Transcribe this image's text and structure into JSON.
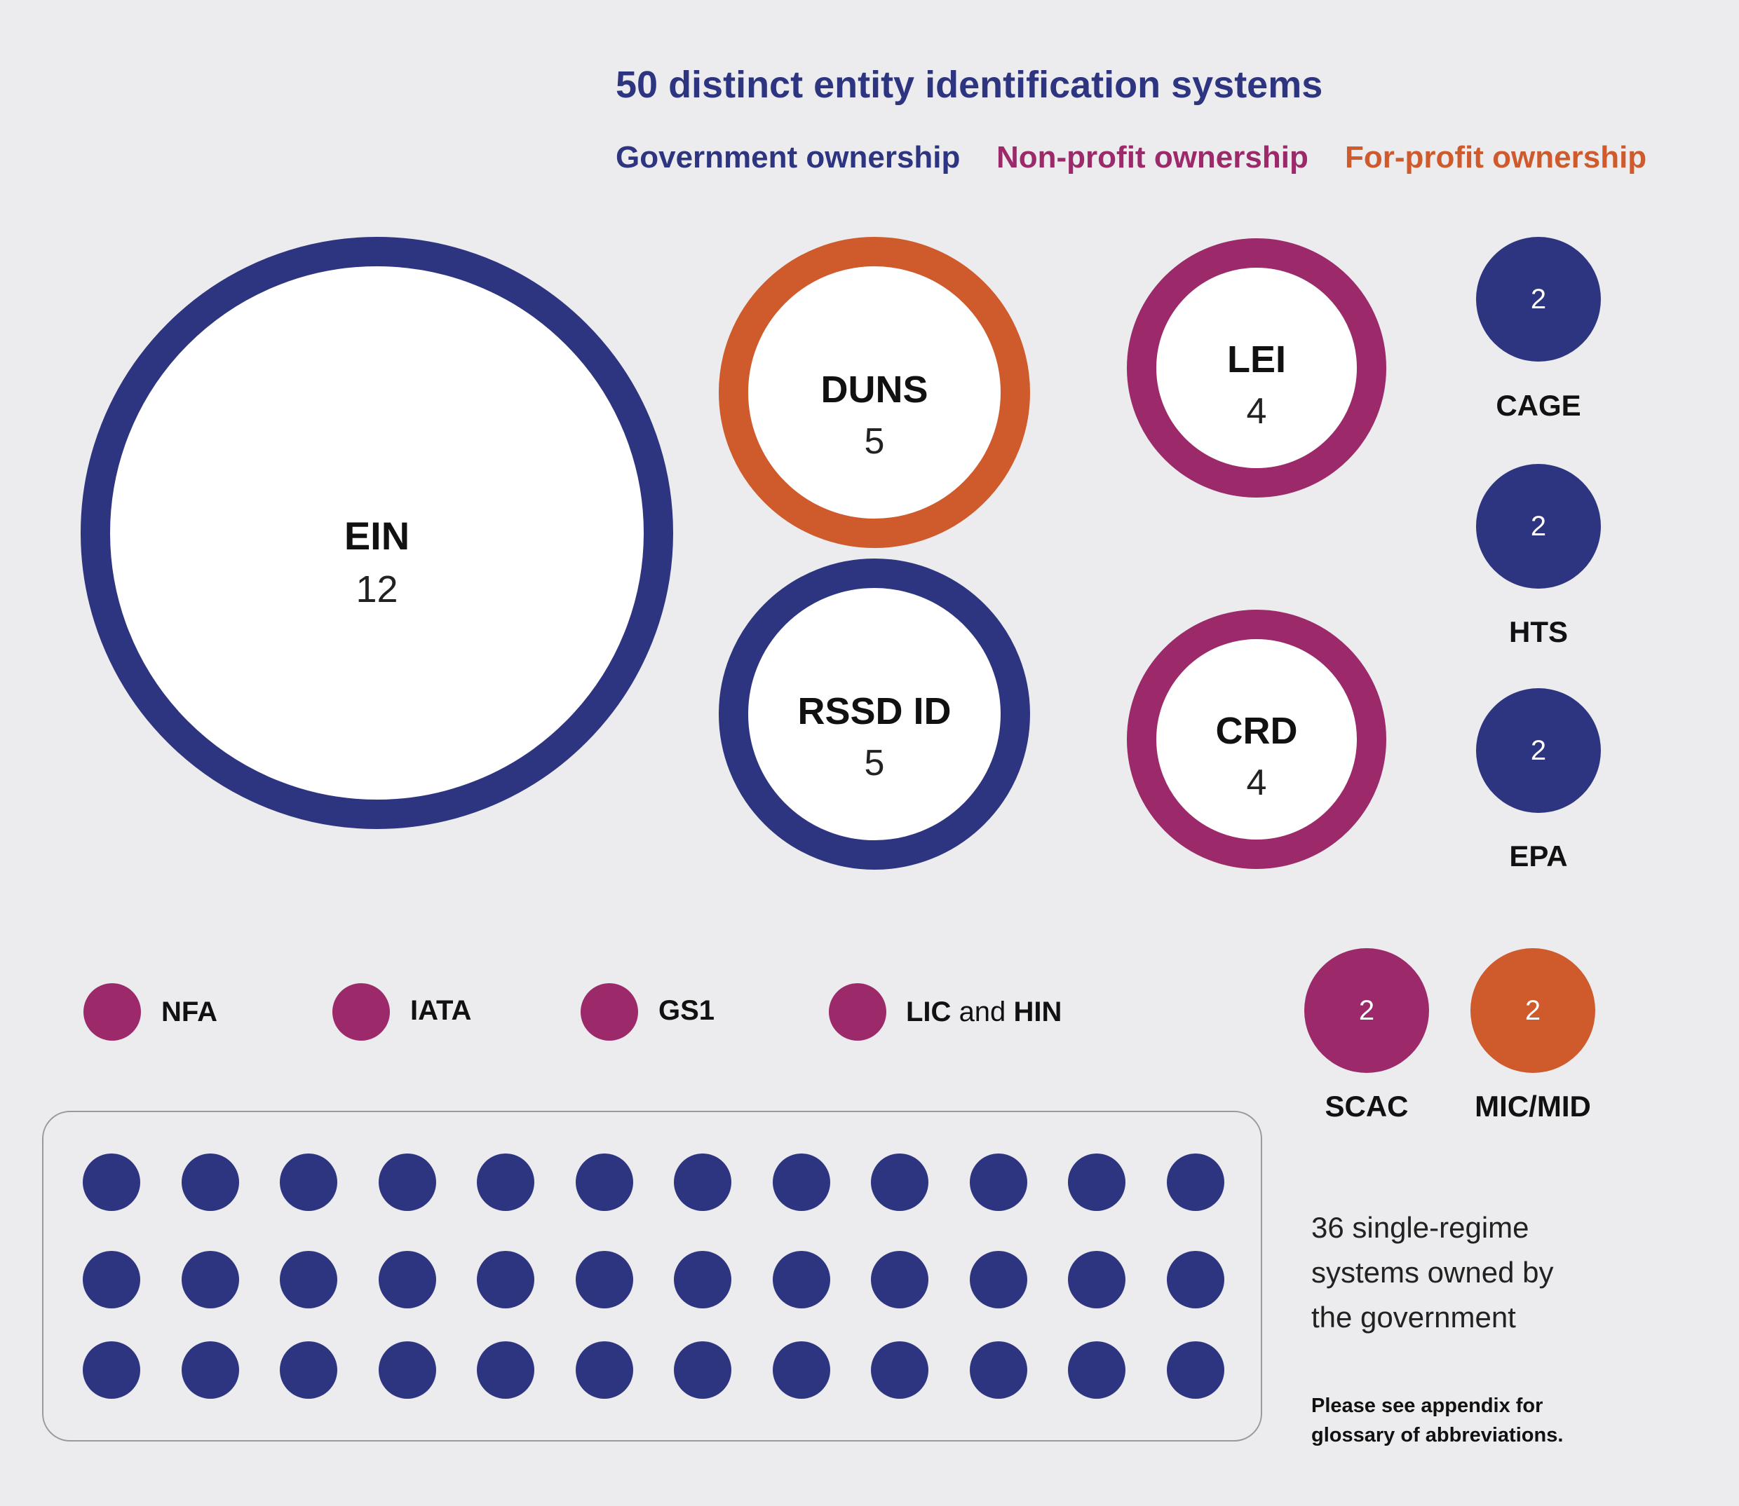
{
  "title": "50 distinct entity identification systems",
  "legend": {
    "government": "Government ownership",
    "nonprofit": "Non-profit ownership",
    "forprofit": "For-profit ownership"
  },
  "colors": {
    "government": "#2e3580",
    "nonprofit": "#9c2a6a",
    "forprofit": "#cf5a2c"
  },
  "major_systems": [
    {
      "label": "EIN",
      "count": "12",
      "ownership": "government"
    },
    {
      "label": "DUNS",
      "count": "5",
      "ownership": "forprofit"
    },
    {
      "label": "RSSD ID",
      "count": "5",
      "ownership": "government"
    },
    {
      "label": "LEI",
      "count": "4",
      "ownership": "nonprofit"
    },
    {
      "label": "CRD",
      "count": "4",
      "ownership": "nonprofit"
    }
  ],
  "two_regime_systems": [
    {
      "label": "CAGE",
      "count": "2",
      "ownership": "government"
    },
    {
      "label": "HTS",
      "count": "2",
      "ownership": "government"
    },
    {
      "label": "EPA",
      "count": "2",
      "ownership": "government"
    },
    {
      "label": "SCAC",
      "count": "2",
      "ownership": "nonprofit"
    },
    {
      "label": "MIC/MID",
      "count": "2",
      "ownership": "forprofit"
    }
  ],
  "single_nonprofit": {
    "nfa": "NFA",
    "iata": "IATA",
    "gs1": "GS1",
    "lic": "LIC",
    "and": "and",
    "hin": "HIN"
  },
  "single_government_count": 36,
  "note": {
    "line1": "36 single-regime",
    "line2": "systems owned by",
    "line3": "the government"
  },
  "appendix": {
    "line1": "Please see appendix for",
    "line2": "glossary of abbreviations."
  }
}
